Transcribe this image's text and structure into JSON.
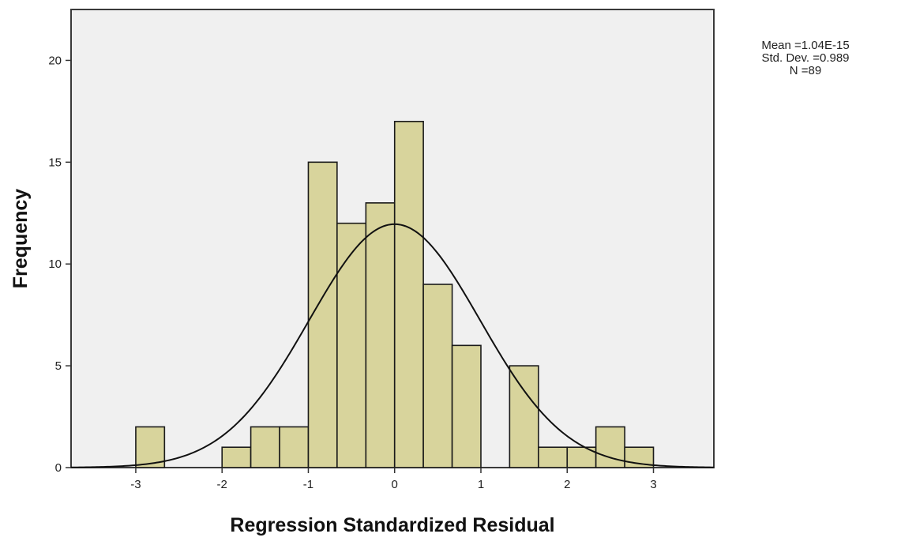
{
  "chart_data": {
    "type": "bar",
    "subtype": "histogram-with-normal-curve",
    "xlabel": "Regression Standardized Residual",
    "ylabel": "Frequency",
    "xlim": [
      -3.75,
      3.7
    ],
    "ylim": [
      0,
      22.5
    ],
    "xticks": [
      -3,
      -2,
      -1,
      0,
      1,
      2,
      3
    ],
    "yticks": [
      0,
      5,
      10,
      15,
      20
    ],
    "bin_width": 0.333,
    "bins": [
      {
        "x0": -3.0,
        "x1": -2.667,
        "count": 2
      },
      {
        "x0": -2.667,
        "x1": -2.333,
        "count": 0
      },
      {
        "x0": -2.333,
        "x1": -2.0,
        "count": 0
      },
      {
        "x0": -2.0,
        "x1": -1.667,
        "count": 1
      },
      {
        "x0": -1.667,
        "x1": -1.333,
        "count": 2
      },
      {
        "x0": -1.333,
        "x1": -1.0,
        "count": 2
      },
      {
        "x0": -1.0,
        "x1": -0.667,
        "count": 15
      },
      {
        "x0": -0.667,
        "x1": -0.333,
        "count": 12
      },
      {
        "x0": -0.333,
        "x1": 0.0,
        "count": 13
      },
      {
        "x0": 0.0,
        "x1": 0.333,
        "count": 17
      },
      {
        "x0": 0.333,
        "x1": 0.667,
        "count": 9
      },
      {
        "x0": 0.667,
        "x1": 1.0,
        "count": 6
      },
      {
        "x0": 1.0,
        "x1": 1.333,
        "count": 0
      },
      {
        "x0": 1.333,
        "x1": 1.667,
        "count": 5
      },
      {
        "x0": 1.667,
        "x1": 2.0,
        "count": 1
      },
      {
        "x0": 2.0,
        "x1": 2.333,
        "count": 1
      },
      {
        "x0": 2.333,
        "x1": 2.667,
        "count": 2
      },
      {
        "x0": 2.667,
        "x1": 3.0,
        "count": 1
      }
    ],
    "normal_curve": {
      "mean": 0.0,
      "std": 0.989,
      "n": 89
    },
    "stats": {
      "mean_label": "Mean =1.04E-15",
      "std_label": "Std. Dev. =0.989",
      "n_label": "N =89"
    },
    "grid": false,
    "legend": "top-right",
    "colors": {
      "bar_fill": "#d8d49c",
      "bar_stroke": "#1a1a1a",
      "plot_bg": "#f0f0f0",
      "curve": "#111111"
    }
  }
}
